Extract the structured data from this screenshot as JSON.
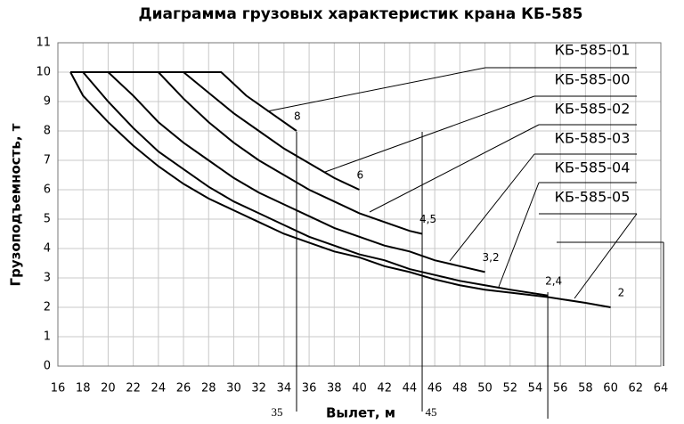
{
  "chart_data": {
    "type": "line",
    "title": "Диаграмма грузовых характеристик крана КБ-585",
    "x_label": "Вылет, м",
    "y_label": "Грузоподъемность, т",
    "xlim": [
      16,
      64
    ],
    "xticks": [
      16,
      18,
      20,
      22,
      24,
      26,
      28,
      30,
      32,
      34,
      36,
      38,
      40,
      42,
      44,
      46,
      48,
      50,
      52,
      54,
      56,
      58,
      60,
      62,
      64
    ],
    "ylim": [
      0,
      11
    ],
    "yticks": [
      0,
      1,
      2,
      3,
      4,
      5,
      6,
      7,
      8,
      9,
      10,
      11
    ],
    "grid": true,
    "ref_lines": [
      35,
      45
    ],
    "ref_lines_unlabeled": [
      55
    ],
    "series": [
      {
        "name": "КБ-585-01",
        "color": "#000000",
        "end_label": "8",
        "x": [
          17,
          29,
          31,
          33,
          35
        ],
        "values": [
          10,
          10,
          9.2,
          8.6,
          8
        ]
      },
      {
        "name": "КБ-585-00",
        "color": "#000000",
        "end_label": "6",
        "x": [
          17,
          26,
          28,
          30,
          32,
          34,
          36,
          38,
          40
        ],
        "values": [
          10,
          10,
          9.3,
          8.6,
          8,
          7.4,
          6.9,
          6.4,
          6
        ]
      },
      {
        "name": "КБ-585-02",
        "color": "#000000",
        "end_label": "4,5",
        "x": [
          17,
          24,
          26,
          28,
          30,
          32,
          34,
          36,
          38,
          40,
          42,
          44,
          45
        ],
        "values": [
          10,
          10,
          9.1,
          8.3,
          7.6,
          7,
          6.5,
          6,
          5.6,
          5.2,
          4.9,
          4.6,
          4.5
        ]
      },
      {
        "name": "КБ-585-03",
        "color": "#000000",
        "end_label": "3,2",
        "x": [
          17,
          20,
          22,
          24,
          26,
          28,
          30,
          32,
          34,
          36,
          38,
          40,
          42,
          44,
          46,
          48,
          50
        ],
        "values": [
          10,
          10,
          9.2,
          8.3,
          7.6,
          7,
          6.4,
          5.9,
          5.5,
          5.1,
          4.7,
          4.4,
          4.1,
          3.9,
          3.6,
          3.4,
          3.2
        ]
      },
      {
        "name": "КБ-585-04",
        "color": "#000000",
        "end_label": "2,4",
        "x": [
          17,
          18,
          20,
          22,
          24,
          26,
          28,
          30,
          32,
          34,
          36,
          38,
          40,
          42,
          44,
          46,
          48,
          50,
          52,
          55
        ],
        "values": [
          10,
          10,
          9,
          8.1,
          7.3,
          6.7,
          6.1,
          5.6,
          5.2,
          4.8,
          4.4,
          4.1,
          3.8,
          3.6,
          3.3,
          3.1,
          2.9,
          2.75,
          2.6,
          2.4
        ]
      },
      {
        "name": "КБ-585-05",
        "color": "#000000",
        "end_label": "2",
        "x": [
          17,
          18,
          20,
          22,
          24,
          26,
          28,
          30,
          32,
          34,
          36,
          38,
          40,
          42,
          44,
          46,
          48,
          50,
          52,
          55,
          58,
          60
        ],
        "values": [
          10,
          9.2,
          8.3,
          7.5,
          6.8,
          6.2,
          5.7,
          5.3,
          4.9,
          4.5,
          4.2,
          3.9,
          3.7,
          3.4,
          3.2,
          2.95,
          2.75,
          2.6,
          2.5,
          2.35,
          2.15,
          2
        ]
      }
    ]
  }
}
